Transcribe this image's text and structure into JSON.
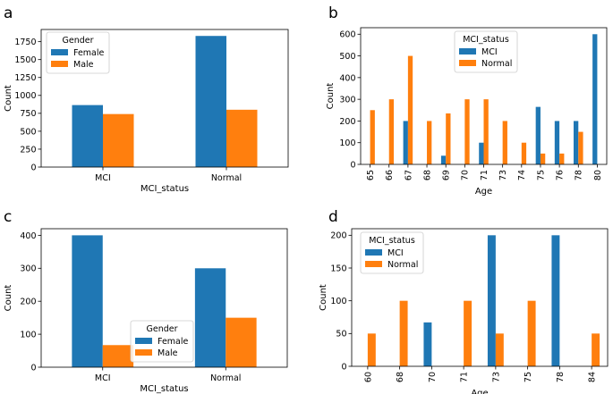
{
  "colors": {
    "blue": "#1f77b4",
    "orange": "#ff7f0e"
  },
  "chart_data": [
    {
      "panel": "a",
      "type": "bar",
      "xlabel": "MCI_status",
      "ylabel": "Count",
      "categories": [
        "MCI",
        "Normal"
      ],
      "series": [
        {
          "name": "Female",
          "values": [
            865,
            1830
          ]
        },
        {
          "name": "Male",
          "values": [
            740,
            800
          ]
        }
      ],
      "ylim": [
        0,
        1920
      ],
      "yticks": [
        0,
        250,
        500,
        750,
        1000,
        1250,
        1500,
        1750
      ],
      "legend": {
        "title": "Gender",
        "position": "upper-left"
      },
      "xtick_rotation": 0
    },
    {
      "panel": "b",
      "type": "bar",
      "xlabel": "Age",
      "ylabel": "Count",
      "categories": [
        "65",
        "66",
        "67",
        "68",
        "69",
        "70",
        "71",
        "73",
        "74",
        "75",
        "76",
        "78",
        "80"
      ],
      "series": [
        {
          "name": "MCI",
          "values": [
            0,
            0,
            200,
            0,
            40,
            0,
            100,
            0,
            0,
            265,
            200,
            200,
            600
          ]
        },
        {
          "name": "Normal",
          "values": [
            250,
            300,
            500,
            200,
            235,
            300,
            300,
            200,
            100,
            50,
            50,
            150,
            0
          ]
        }
      ],
      "ylim": [
        0,
        630
      ],
      "yticks": [
        0,
        100,
        200,
        300,
        400,
        500,
        600
      ],
      "legend": {
        "title": "MCI_status",
        "position": "upper-center"
      },
      "xtick_rotation": 90
    },
    {
      "panel": "c",
      "type": "bar",
      "xlabel": "MCI_status",
      "ylabel": "Count",
      "categories": [
        "MCI",
        "Normal"
      ],
      "series": [
        {
          "name": "Female",
          "values": [
            400,
            300
          ]
        },
        {
          "name": "Male",
          "values": [
            67,
            150
          ]
        }
      ],
      "ylim": [
        0,
        420
      ],
      "yticks": [
        0,
        100,
        200,
        300,
        400
      ],
      "legend": {
        "title": "Gender",
        "position": "lower-center"
      },
      "xtick_rotation": 0
    },
    {
      "panel": "d",
      "type": "bar",
      "xlabel": "Age",
      "ylabel": "Count",
      "categories": [
        "60",
        "68",
        "70",
        "71",
        "73",
        "75",
        "78",
        "84"
      ],
      "series": [
        {
          "name": "MCI",
          "values": [
            0,
            0,
            67,
            0,
            200,
            0,
            200,
            0
          ]
        },
        {
          "name": "Normal",
          "values": [
            50,
            100,
            0,
            100,
            50,
            100,
            0,
            50
          ]
        }
      ],
      "ylim": [
        0,
        210
      ],
      "yticks": [
        0,
        50,
        100,
        150,
        200
      ],
      "legend": {
        "title": "MCI_status",
        "position": "upper-left"
      },
      "xtick_rotation": 90
    }
  ]
}
